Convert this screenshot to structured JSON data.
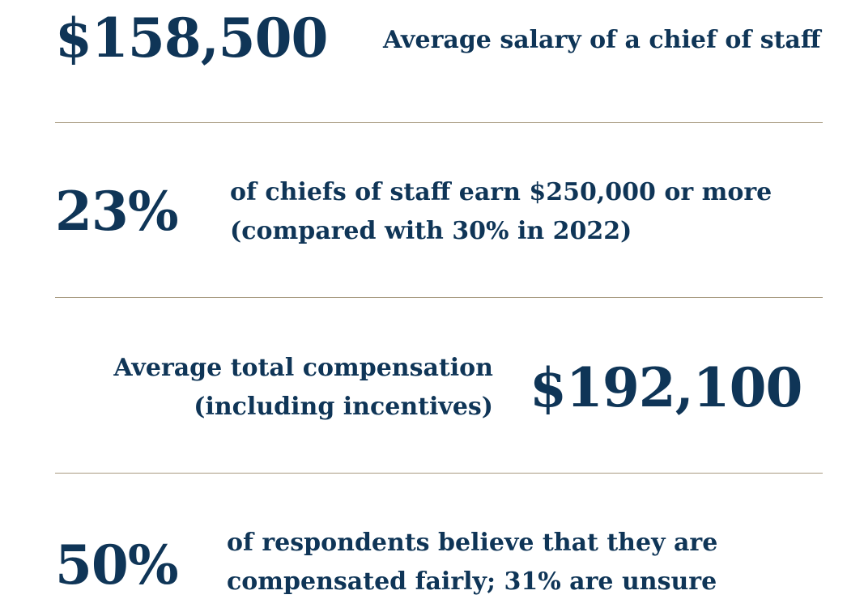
{
  "stats": [
    {
      "value": "$158,500",
      "label_lines": [
        "Average salary of a chief of staff"
      ]
    },
    {
      "value": "23%",
      "label_lines": [
        "of chiefs of staff earn $250,000 or more",
        "(compared with 30% in 2022)"
      ]
    },
    {
      "value": "$192,100",
      "label_lines": [
        "Average total compensation",
        "(including incentives)"
      ]
    },
    {
      "value": "50%",
      "label_lines": [
        "of respondents believe that they are",
        "compensated fairly; 31% are unsure"
      ]
    }
  ],
  "colors": {
    "text": "#0f3557",
    "divider": "#a89a80",
    "background": "#ffffff"
  }
}
